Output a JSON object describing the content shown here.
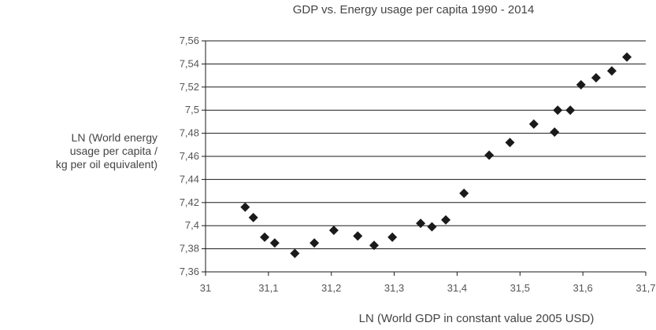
{
  "chart_data": {
    "type": "scatter",
    "title": "GDP vs. Energy usage per capita 1990 - 2014",
    "ylabel_lines": [
      "LN (World energy",
      "usage per capita /",
      "kg per oil equivalent)"
    ],
    "xlabel": "LN (World GDP in constant value 2005 USD)",
    "xlim": [
      31,
      31.7
    ],
    "ylim": [
      7.36,
      7.56
    ],
    "x_ticks": [
      "31",
      "31,1",
      "31,2",
      "31,3",
      "31,4",
      "31,5",
      "31,6",
      "31,7"
    ],
    "x_tick_values": [
      31,
      31.1,
      31.2,
      31.3,
      31.4,
      31.5,
      31.6,
      31.7
    ],
    "y_ticks": [
      "7,36",
      "7,38",
      "7,4",
      "7,42",
      "7,44",
      "7,46",
      "7,48",
      "7,5",
      "7,52",
      "7,54",
      "7,56"
    ],
    "y_tick_values": [
      7.36,
      7.38,
      7.4,
      7.42,
      7.44,
      7.46,
      7.48,
      7.5,
      7.52,
      7.54,
      7.56
    ],
    "grid": "horizontal",
    "marker": "diamond",
    "marker_color": "#1a1a1a",
    "points": [
      {
        "x": 31.063,
        "y": 7.416
      },
      {
        "x": 31.076,
        "y": 7.407
      },
      {
        "x": 31.094,
        "y": 7.39
      },
      {
        "x": 31.11,
        "y": 7.385
      },
      {
        "x": 31.142,
        "y": 7.376
      },
      {
        "x": 31.173,
        "y": 7.385
      },
      {
        "x": 31.204,
        "y": 7.396
      },
      {
        "x": 31.242,
        "y": 7.391
      },
      {
        "x": 31.268,
        "y": 7.383
      },
      {
        "x": 31.297,
        "y": 7.39
      },
      {
        "x": 31.342,
        "y": 7.402
      },
      {
        "x": 31.36,
        "y": 7.399
      },
      {
        "x": 31.382,
        "y": 7.405
      },
      {
        "x": 31.411,
        "y": 7.428
      },
      {
        "x": 31.451,
        "y": 7.461
      },
      {
        "x": 31.484,
        "y": 7.472
      },
      {
        "x": 31.522,
        "y": 7.488
      },
      {
        "x": 31.555,
        "y": 7.481
      },
      {
        "x": 31.56,
        "y": 7.5
      },
      {
        "x": 31.58,
        "y": 7.5
      },
      {
        "x": 31.597,
        "y": 7.522
      },
      {
        "x": 31.621,
        "y": 7.528
      },
      {
        "x": 31.646,
        "y": 7.534
      },
      {
        "x": 31.67,
        "y": 7.546
      }
    ]
  }
}
